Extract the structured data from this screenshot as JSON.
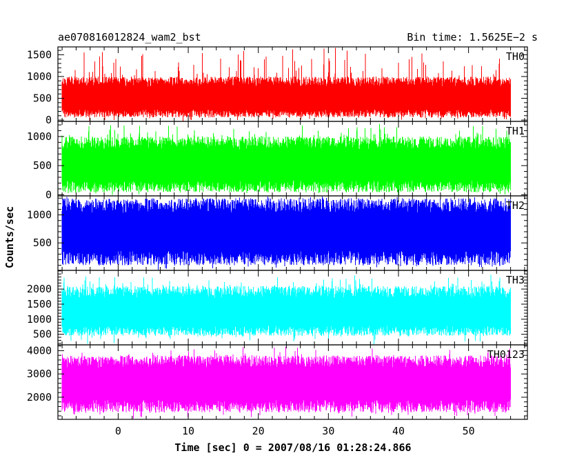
{
  "header": {
    "title": "ae070816012824_wam2_bst",
    "bin_time": "Bin time: 1.5625E−2 s"
  },
  "chart_data": {
    "type": "line",
    "subtype": "stacked light curves",
    "xlabel": "Time [sec] 0 = 2007/08/16 01:28:24.866",
    "ylabel": "Counts/sec",
    "xlim": [
      -8.6,
      58.4
    ],
    "x_ticks": [
      0,
      10,
      20,
      30,
      40,
      50
    ],
    "x_tick_labels": [
      "0",
      "10",
      "20",
      "30",
      "40",
      "50"
    ],
    "x_minor_step": 2,
    "data_x_range": [
      -8.0,
      56.0
    ],
    "panels": [
      {
        "name": "TH0",
        "color": "#ff0000",
        "ylim": [
          -30,
          1680
        ],
        "y_ticks": [
          0,
          500,
          1000,
          1500
        ],
        "y_tick_labels": [
          "0",
          "500",
          "1000",
          "1500"
        ],
        "y_minor_step": 100,
        "band": {
          "center": 480,
          "lower_typical": 60,
          "upper_typical": 1000,
          "max_peak": 1680
        }
      },
      {
        "name": "TH1",
        "color": "#00ff00",
        "ylim": [
          -20,
          1260
        ],
        "y_ticks": [
          0,
          500,
          1000
        ],
        "y_tick_labels": [
          "0",
          "500",
          "1000"
        ],
        "y_minor_step": 100,
        "band": {
          "center": 500,
          "lower_typical": 40,
          "upper_typical": 1000,
          "max_peak": 1260
        }
      },
      {
        "name": "TH2",
        "color": "#0000ff",
        "ylim": [
          10,
          1340
        ],
        "y_ticks": [
          500,
          1000
        ],
        "y_tick_labels": [
          "500",
          "1000"
        ],
        "y_minor_step": 100,
        "band": {
          "center": 700,
          "lower_typical": 100,
          "upper_typical": 1300,
          "max_peak": 1340
        }
      },
      {
        "name": "TH3",
        "color": "#00ffff",
        "ylim": [
          150,
          2620
        ],
        "y_ticks": [
          500,
          1000,
          1500,
          2000
        ],
        "y_tick_labels": [
          "500",
          "1000",
          "1500",
          "2000"
        ],
        "y_minor_step": 100,
        "band": {
          "center": 1200,
          "lower_typical": 450,
          "upper_typical": 2100,
          "max_peak": 2520
        }
      },
      {
        "name": "TH0123",
        "color": "#ff00ff",
        "ylim": [
          1050,
          4250
        ],
        "y_ticks": [
          2000,
          3000,
          4000
        ],
        "y_tick_labels": [
          "2000",
          "3000",
          "4000"
        ],
        "y_minor_step": 200,
        "band": {
          "center": 2600,
          "lower_typical": 1350,
          "upper_typical": 3800,
          "max_peak": 4200
        }
      }
    ]
  }
}
